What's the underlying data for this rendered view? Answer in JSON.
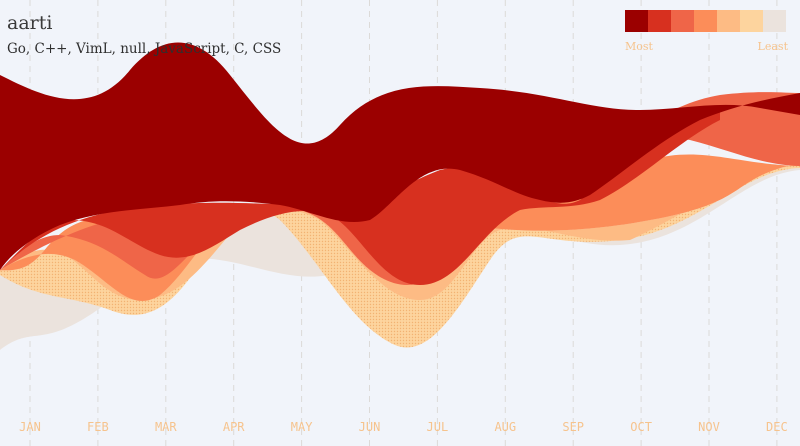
{
  "header": {
    "title": "aarti",
    "languages": "Go, C++, VimL, null, JavaScript, C, CSS"
  },
  "legend": {
    "most_label": "Most",
    "least_label": "Least",
    "colors": [
      "#9b0000",
      "#d7301f",
      "#ef6548",
      "#fc8d59",
      "#fdbb84",
      "#fdd49e",
      "#ebe3dd"
    ]
  },
  "chart_data": {
    "type": "area",
    "layout": "streamgraph",
    "categories": [
      "JAN",
      "FEB",
      "MAR",
      "APR",
      "MAY",
      "JUN",
      "JUL",
      "AUG",
      "SEP",
      "OCT",
      "NOV",
      "DEC"
    ]
  }
}
